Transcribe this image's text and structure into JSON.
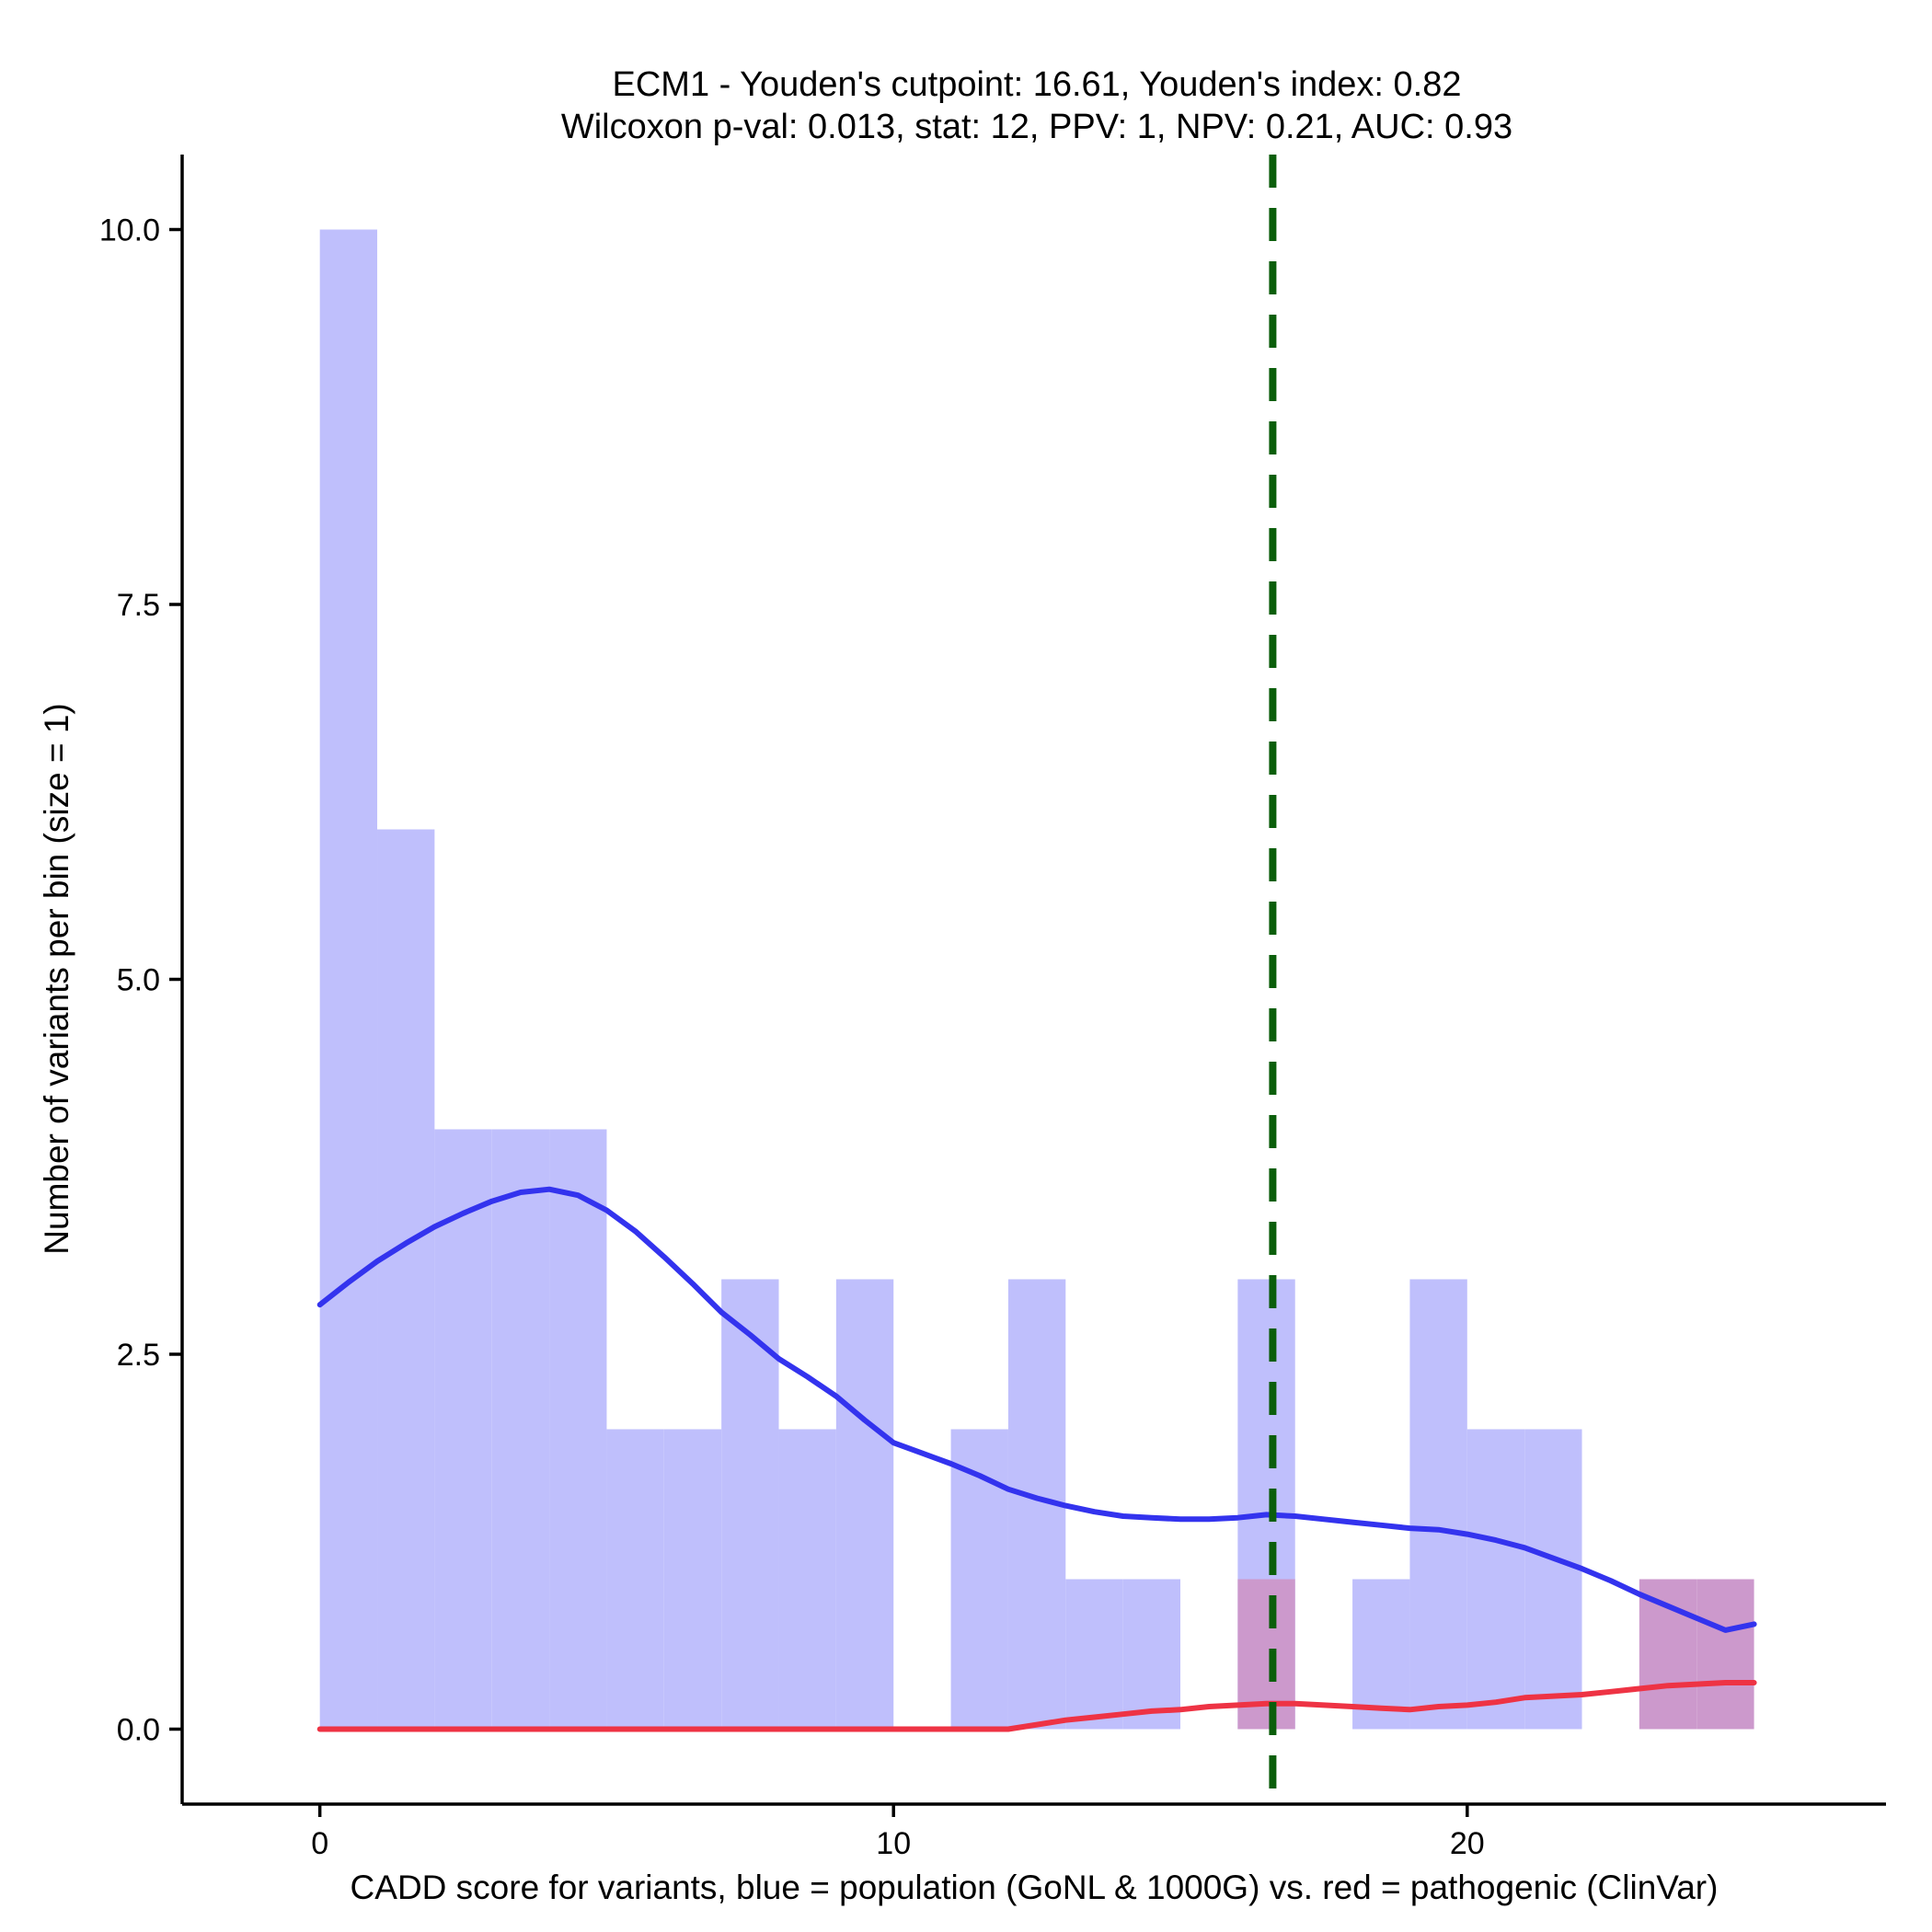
{
  "chart_data": {
    "type": "histogram",
    "title_line1": "ECM1 - Youden's cutpoint: 16.61, Youden's index: 0.82",
    "title_line2": "Wilcoxon p-val: 0.013, stat: 12, PPV: 1, NPV: 0.21, AUC: 0.93",
    "xlabel": "CADD score for variants, blue = population (GoNL & 1000G) vs. red = pathogenic (ClinVar)",
    "ylabel": "Number of variants per bin (size = 1)",
    "xlim": [
      -2.4,
      27.3
    ],
    "ylim": [
      -0.5,
      10.5
    ],
    "x_ticks": [
      0,
      10,
      20
    ],
    "x_tick_labels": [
      "0",
      "10",
      "20"
    ],
    "y_ticks": [
      0,
      2.5,
      5,
      7.5,
      10
    ],
    "y_tick_labels": [
      "0.0",
      "2.5",
      "5.0",
      "7.5",
      "10.0"
    ],
    "bin_width": 1,
    "series": [
      {
        "name": "population (GoNL & 1000G)",
        "color": "#bfbffc",
        "bin_starts": [
          0,
          1,
          2,
          3,
          4,
          5,
          6,
          7,
          8,
          9,
          10,
          11,
          12,
          13,
          14,
          15,
          16,
          17,
          18,
          19,
          20,
          21,
          22,
          23,
          24
        ],
        "counts": [
          10,
          6,
          4,
          4,
          4,
          2,
          2,
          3,
          2,
          3,
          0,
          2,
          3,
          1,
          1,
          0,
          3,
          0,
          1,
          3,
          2,
          2,
          0,
          0,
          0
        ]
      },
      {
        "name": "pathogenic (ClinVar)",
        "color": "#cc99cc",
        "bin_starts": [
          16,
          23,
          24
        ],
        "counts": [
          1,
          1,
          1
        ]
      }
    ],
    "density_lines": [
      {
        "name": "population density",
        "color": "#3333ee",
        "x": [
          0,
          0.5,
          1,
          1.5,
          2,
          2.5,
          3,
          3.5,
          4,
          4.5,
          5,
          5.5,
          6,
          6.5,
          7,
          7.5,
          8,
          8.5,
          9,
          9.5,
          10,
          10.5,
          11,
          11.5,
          12,
          12.5,
          13,
          13.5,
          14,
          14.5,
          15,
          15.5,
          16,
          16.5,
          17,
          17.5,
          18,
          18.5,
          19,
          19.5,
          20,
          20.5,
          21,
          21.5,
          22,
          22.5,
          23,
          23.5,
          24,
          24.5,
          25
        ],
        "y": [
          2.83,
          2.98,
          3.12,
          3.24,
          3.35,
          3.44,
          3.52,
          3.58,
          3.6,
          3.56,
          3.46,
          3.32,
          3.15,
          2.97,
          2.78,
          2.63,
          2.47,
          2.35,
          2.22,
          2.06,
          1.91,
          1.84,
          1.77,
          1.69,
          1.6,
          1.54,
          1.49,
          1.45,
          1.42,
          1.41,
          1.4,
          1.4,
          1.41,
          1.43,
          1.42,
          1.4,
          1.38,
          1.36,
          1.34,
          1.33,
          1.3,
          1.26,
          1.21,
          1.14,
          1.07,
          0.99,
          0.9,
          0.82,
          0.74,
          0.66,
          0.7
        ]
      },
      {
        "name": "pathogenic density",
        "color": "#ee3344",
        "x": [
          0,
          1,
          2,
          3,
          4,
          5,
          6,
          7,
          8,
          9,
          10,
          11,
          12,
          12.5,
          13,
          13.5,
          14,
          14.5,
          15,
          15.5,
          16,
          16.5,
          17,
          17.5,
          18,
          18.5,
          19,
          19.5,
          20,
          20.5,
          21,
          21.5,
          22,
          22.5,
          23,
          23.5,
          24,
          24.5,
          25
        ],
        "y": [
          0,
          0,
          0,
          0,
          0,
          0,
          0,
          0,
          0,
          0,
          0,
          0,
          0,
          0.03,
          0.06,
          0.08,
          0.1,
          0.12,
          0.13,
          0.15,
          0.16,
          0.17,
          0.17,
          0.16,
          0.15,
          0.14,
          0.13,
          0.15,
          0.16,
          0.18,
          0.21,
          0.22,
          0.23,
          0.25,
          0.27,
          0.29,
          0.3,
          0.31,
          0.31
        ]
      }
    ],
    "cutpoint": {
      "x": 16.61,
      "color": "#0b5e0b",
      "style": "dashed"
    }
  }
}
